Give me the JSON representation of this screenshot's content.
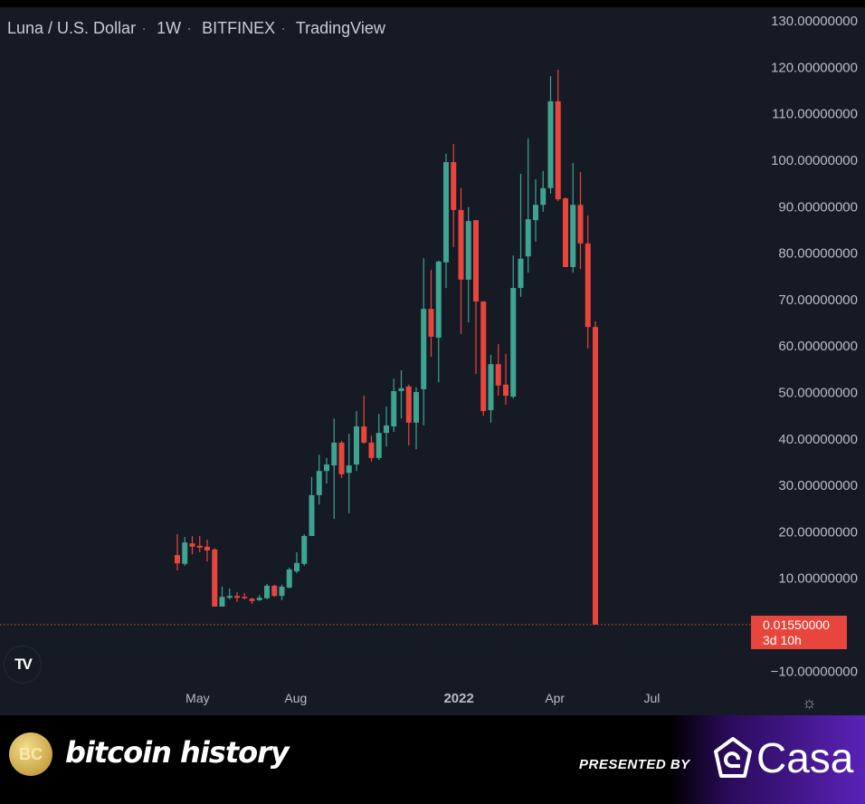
{
  "header": {
    "symbol": "Luna / U.S. Dollar",
    "interval": "1W",
    "exchange": "BITFINEX",
    "source": "TradingView"
  },
  "last_price": {
    "value": "0.01550000",
    "countdown": "3d 10h",
    "color": "#e8453c"
  },
  "icons": {
    "logo": "tradingview-logo-icon",
    "settings": "gear-icon"
  },
  "footer": {
    "brand": "bitcoin history",
    "brand_logo_text": "BC",
    "presented_by": "PRESENTED BY",
    "sponsor": "Casa"
  },
  "chart_data": {
    "type": "candlestick",
    "title": "",
    "xlabel": "",
    "ylabel": "",
    "ylim": [
      -13,
      134
    ],
    "y_ticks": [
      130,
      120,
      110,
      100,
      90,
      80,
      70,
      60,
      50,
      40,
      30,
      20,
      10,
      -10
    ],
    "y_tick_labels": [
      "130.00000000",
      "120.00000000",
      "110.00000000",
      "100.00000000",
      "90.00000000",
      "80.00000000",
      "70.00000000",
      "60.00000000",
      "50.00000000",
      "40.00000000",
      "30.00000000",
      "20.00000000",
      "10.00000000",
      "−10.00000000"
    ],
    "x_ticks": [
      {
        "label": "May",
        "date": "2021-05-01",
        "bold": false
      },
      {
        "label": "Aug",
        "date": "2021-08-01",
        "bold": false
      },
      {
        "label": "2022",
        "date": "2022-01-01",
        "bold": true
      },
      {
        "label": "Apr",
        "date": "2022-04-01",
        "bold": false
      },
      {
        "label": "Jul",
        "date": "2022-07-01",
        "bold": false
      }
    ],
    "colors": {
      "up": "#3ea391",
      "down": "#e8453c",
      "background": "#161a25"
    },
    "last_price_line": 0.0155,
    "grid": false,
    "dates": [
      "2021-04-12",
      "2021-04-19",
      "2021-04-26",
      "2021-05-03",
      "2021-05-10",
      "2021-05-17",
      "2021-05-24",
      "2021-05-31",
      "2021-06-07",
      "2021-06-14",
      "2021-06-21",
      "2021-06-28",
      "2021-07-05",
      "2021-07-12",
      "2021-07-19",
      "2021-07-26",
      "2021-08-02",
      "2021-08-09",
      "2021-08-16",
      "2021-08-23",
      "2021-08-30",
      "2021-09-06",
      "2021-09-13",
      "2021-09-20",
      "2021-09-27",
      "2021-10-04",
      "2021-10-11",
      "2021-10-18",
      "2021-10-25",
      "2021-11-01",
      "2021-11-08",
      "2021-11-15",
      "2021-11-22",
      "2021-11-29",
      "2021-12-06",
      "2021-12-13",
      "2021-12-20",
      "2021-12-27",
      "2022-01-03",
      "2022-01-10",
      "2022-01-17",
      "2022-01-24",
      "2022-01-31",
      "2022-02-07",
      "2022-02-14",
      "2022-02-21",
      "2022-02-28",
      "2022-03-07",
      "2022-03-14",
      "2022-03-21",
      "2022-03-28",
      "2022-04-04",
      "2022-04-11",
      "2022-04-18",
      "2022-04-25",
      "2022-05-02",
      "2022-05-09"
    ],
    "ohlc": [
      [
        15.0,
        19.5,
        11.7,
        13.2
      ],
      [
        13.1,
        18.9,
        12.7,
        17.7
      ],
      [
        17.5,
        19.1,
        15.2,
        16.8
      ],
      [
        17.0,
        19.1,
        15.6,
        16.6
      ],
      [
        16.8,
        18.3,
        13.6,
        16.0
      ],
      [
        16.2,
        16.5,
        3.9,
        3.9
      ],
      [
        3.9,
        8.2,
        3.9,
        6.0
      ],
      [
        5.8,
        7.8,
        5.5,
        6.2
      ],
      [
        6.2,
        7.0,
        4.9,
        5.8
      ],
      [
        6.0,
        6.8,
        5.5,
        5.8
      ],
      [
        5.6,
        5.8,
        4.5,
        5.1
      ],
      [
        5.3,
        6.4,
        5.1,
        5.8
      ],
      [
        5.7,
        8.8,
        5.5,
        8.4
      ],
      [
        8.4,
        8.6,
        6.0,
        6.2
      ],
      [
        6.2,
        8.6,
        5.3,
        8.2
      ],
      [
        8.0,
        12.3,
        7.8,
        11.9
      ],
      [
        11.5,
        15.6,
        11.1,
        13.3
      ],
      [
        13.1,
        19.5,
        12.7,
        19.1
      ],
      [
        19.1,
        31.8,
        19.1,
        27.9
      ],
      [
        27.9,
        36.6,
        25.9,
        33.1
      ],
      [
        33.1,
        35.9,
        30.4,
        34.5
      ],
      [
        34.3,
        44.4,
        22.8,
        39.2
      ],
      [
        39.2,
        39.6,
        31.6,
        32.4
      ],
      [
        32.7,
        41.1,
        24.0,
        34.3
      ],
      [
        34.5,
        46.0,
        33.1,
        42.7
      ],
      [
        42.7,
        49.3,
        39.0,
        39.2
      ],
      [
        39.2,
        40.7,
        35.1,
        35.9
      ],
      [
        35.9,
        45.4,
        35.5,
        41.3
      ],
      [
        41.3,
        47.0,
        38.4,
        42.9
      ],
      [
        42.7,
        53.0,
        41.5,
        50.3
      ],
      [
        50.3,
        54.8,
        44.4,
        50.9
      ],
      [
        51.3,
        51.7,
        38.6,
        43.5
      ],
      [
        43.5,
        51.1,
        37.8,
        50.1
      ],
      [
        50.7,
        78.9,
        42.9,
        68.0
      ],
      [
        68.0,
        76.4,
        57.7,
        62.0
      ],
      [
        61.8,
        78.4,
        52.2,
        78.2
      ],
      [
        78.0,
        101.4,
        72.5,
        99.6
      ],
      [
        99.6,
        103.5,
        81.3,
        89.3
      ],
      [
        89.3,
        94.0,
        62.6,
        74.3
      ],
      [
        74.3,
        89.9,
        65.1,
        86.9
      ],
      [
        87.1,
        87.1,
        54.0,
        69.6
      ],
      [
        69.6,
        69.6,
        45.0,
        46.0
      ],
      [
        46.2,
        58.1,
        43.5,
        56.1
      ],
      [
        56.1,
        60.4,
        49.3,
        51.5
      ],
      [
        51.7,
        58.3,
        47.4,
        49.3
      ],
      [
        49.1,
        79.5,
        48.7,
        72.5
      ],
      [
        72.5,
        97.1,
        70.6,
        78.8
      ],
      [
        79.3,
        104.7,
        75.8,
        87.3
      ],
      [
        87.1,
        95.9,
        82.5,
        90.4
      ],
      [
        90.4,
        97.7,
        88.9,
        94.0
      ],
      [
        94.0,
        118.1,
        92.8,
        112.7
      ],
      [
        112.7,
        119.5,
        91.2,
        91.6
      ],
      [
        91.8,
        92.0,
        77.0,
        77.0
      ],
      [
        77.0,
        99.4,
        75.8,
        90.4
      ],
      [
        90.4,
        97.5,
        76.6,
        82.1
      ],
      [
        82.1,
        88.1,
        59.5,
        64.1
      ],
      [
        64.1,
        65.3,
        0.0155,
        0.0155
      ]
    ]
  }
}
